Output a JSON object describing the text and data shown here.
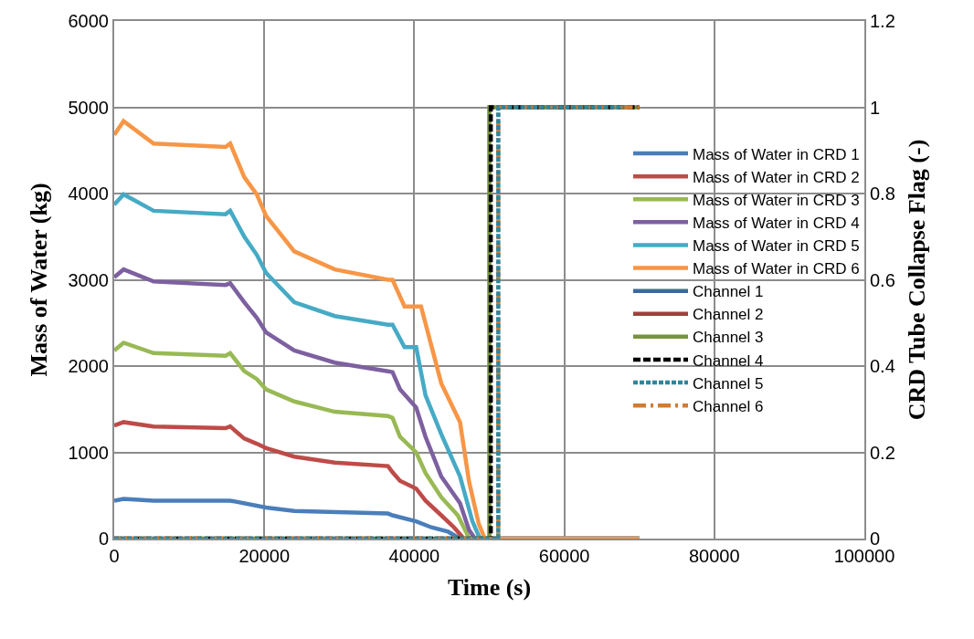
{
  "chart_data": {
    "type": "line",
    "xlabel": "Time (s)",
    "ylabel": "Mass of Water (kg)",
    "y2label": "CRD Tube Collapse Flag (-)",
    "xlim": [
      0,
      100000
    ],
    "xticks": [
      0,
      20000,
      40000,
      60000,
      80000,
      100000
    ],
    "ylim": [
      0,
      6000
    ],
    "yticks": [
      0,
      1000,
      2000,
      3000,
      4000,
      5000,
      6000
    ],
    "y2lim": [
      0,
      1.2
    ],
    "y2ticks": [
      0,
      0.2,
      0.4,
      0.6,
      0.8,
      1,
      1.2
    ],
    "grid": true,
    "legend": "right",
    "marker": "none",
    "series": [
      {
        "name": "Mass of Water in CRD 1",
        "color": "#4a7ebb",
        "line_style": "solid",
        "x": [
          0,
          1250,
          5250,
          14840,
          15460,
          20250,
          24000,
          36500,
          37100,
          40250,
          42300,
          44500,
          46100,
          70000
        ],
        "values": [
          440,
          460,
          440,
          440,
          440,
          360,
          320,
          290,
          270,
          200,
          130,
          80,
          0,
          0
        ]
      },
      {
        "name": "Mass of Water in CRD 2",
        "color": "#be4b48",
        "line_style": "solid",
        "x": [
          0,
          1250,
          5250,
          14840,
          15460,
          17340,
          19000,
          20250,
          24000,
          29400,
          36500,
          37100,
          38100,
          40250,
          41500,
          43600,
          45300,
          46600,
          70000
        ],
        "values": [
          1310,
          1350,
          1300,
          1280,
          1300,
          1160,
          1100,
          1050,
          950,
          880,
          840,
          770,
          670,
          580,
          440,
          270,
          130,
          0,
          0
        ]
      },
      {
        "name": "Mass of Water in CRD 3",
        "color": "#98b954",
        "line_style": "solid",
        "x": [
          0,
          1250,
          5250,
          14840,
          15460,
          17340,
          19000,
          20250,
          24000,
          29400,
          36500,
          37100,
          38100,
          40250,
          41500,
          43600,
          45800,
          47000,
          47300,
          70000
        ],
        "values": [
          2180,
          2270,
          2150,
          2120,
          2150,
          1940,
          1850,
          1730,
          1590,
          1470,
          1420,
          1400,
          1180,
          1000,
          760,
          480,
          270,
          60,
          0,
          0
        ]
      },
      {
        "name": "Mass of Water in CRD 4",
        "color": "#7d60a0",
        "line_style": "solid",
        "x": [
          0,
          1250,
          5250,
          14840,
          15460,
          17340,
          19000,
          20250,
          24000,
          29400,
          36500,
          37100,
          38100,
          40250,
          41500,
          43600,
          46100,
          47300,
          48100,
          70000
        ],
        "values": [
          3030,
          3120,
          2980,
          2940,
          2960,
          2740,
          2560,
          2390,
          2180,
          2040,
          1940,
          1930,
          1730,
          1520,
          1180,
          720,
          410,
          100,
          0,
          0
        ]
      },
      {
        "name": "Mass of Water in CRD 5",
        "color": "#46aac5",
        "line_style": "solid",
        "x": [
          0,
          1250,
          5250,
          14840,
          15460,
          17340,
          19000,
          20250,
          24000,
          29400,
          36500,
          37100,
          38700,
          40250,
          41500,
          43600,
          46100,
          47750,
          48750,
          70000
        ],
        "values": [
          3870,
          3990,
          3800,
          3760,
          3800,
          3500,
          3290,
          3080,
          2740,
          2580,
          2480,
          2480,
          2220,
          2220,
          1660,
          1210,
          720,
          200,
          0,
          0
        ]
      },
      {
        "name": "Mass of Water in CRD 6",
        "color": "#f79646",
        "line_style": "solid",
        "x": [
          0,
          1250,
          5250,
          14840,
          15460,
          17340,
          19000,
          20250,
          24000,
          29400,
          36500,
          37100,
          38700,
          40250,
          40900,
          43600,
          46100,
          47300,
          48600,
          49400,
          70000
        ],
        "values": [
          4680,
          4840,
          4580,
          4540,
          4580,
          4190,
          3990,
          3740,
          3330,
          3120,
          3000,
          3000,
          2690,
          2690,
          2690,
          1800,
          1350,
          660,
          170,
          0,
          0
        ]
      },
      {
        "name": "Channel 1",
        "color": "#3b6aa0",
        "line_style": "solid",
        "axis": "y2",
        "values": [
          null,
          null,
          null,
          null
        ]
      },
      {
        "name": "Channel 2",
        "color": "#a0403d",
        "line_style": "solid",
        "axis": "y2",
        "values": [
          null,
          null,
          null,
          null
        ]
      },
      {
        "name": "Channel 3",
        "color": "#77933c",
        "line_style": "solid",
        "axis": "y2",
        "x": [
          0,
          50000,
          50000,
          70000
        ],
        "values": [
          0,
          0,
          1,
          1
        ]
      },
      {
        "name": "Channel 4",
        "color": "#000000",
        "line_style": "dashed",
        "axis": "y2",
        "x": [
          0,
          50200,
          50200,
          70000
        ],
        "values": [
          0,
          0,
          1,
          1
        ]
      },
      {
        "name": "Channel 5",
        "color": "#31859c",
        "line_style": "dashed",
        "axis": "y2",
        "x": [
          0,
          51200,
          51200,
          68000
        ],
        "values": [
          0,
          0,
          1,
          1
        ]
      },
      {
        "name": "Channel 6",
        "color": "#d07c36",
        "line_style": "dashed",
        "axis": "y2",
        "x": [
          0,
          51200,
          51200,
          70000
        ],
        "values": [
          0,
          0,
          1,
          1
        ]
      }
    ]
  }
}
